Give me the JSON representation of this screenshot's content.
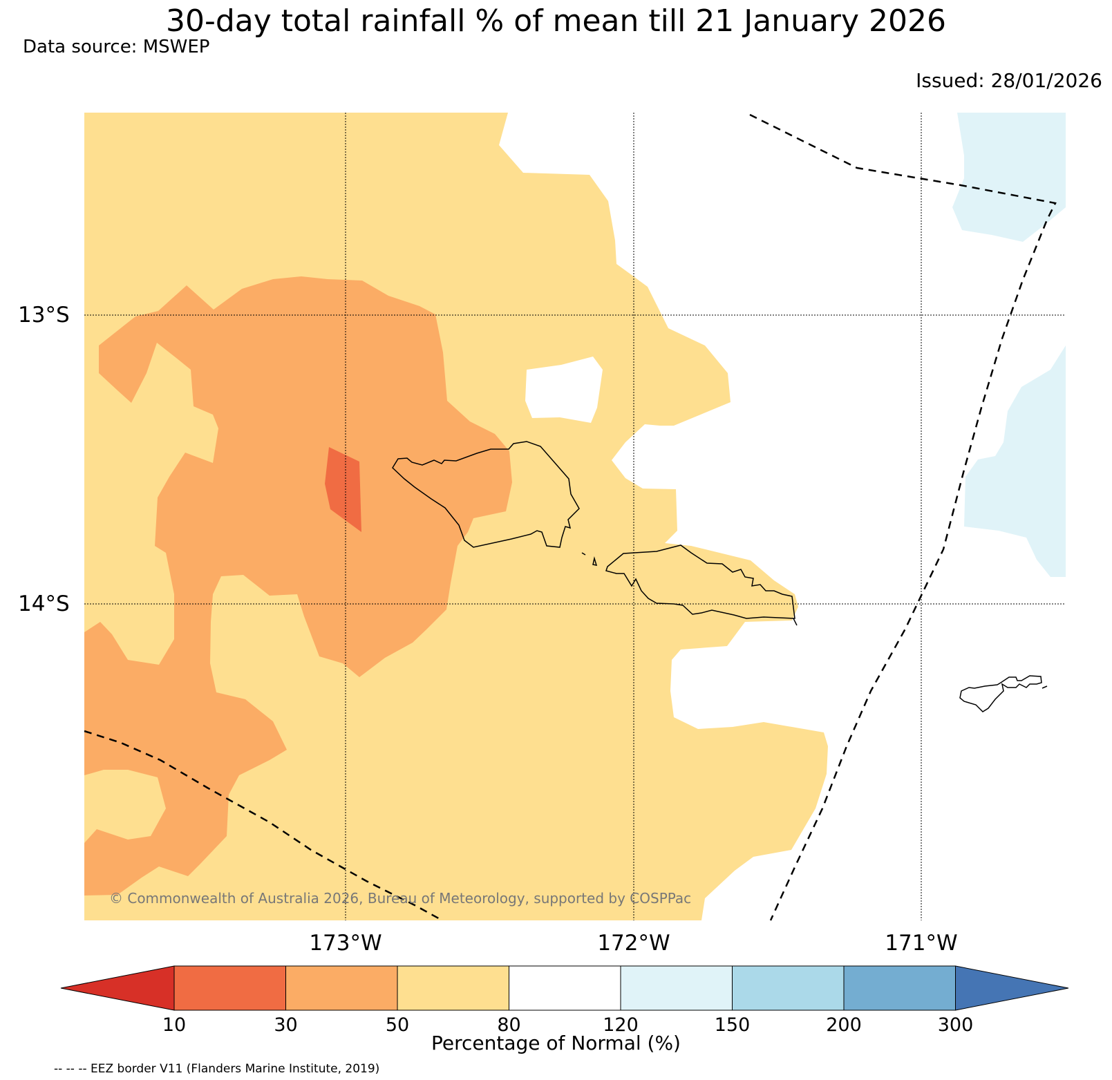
{
  "title": "30-day total rainfall % of mean till 21 January 2026",
  "data_source": "Data source: MSWEP",
  "issued": "Issued: 28/01/2026",
  "copyright": "© Commonwealth of Australia 2026, Bureau of Meteorology, supported by COSPPac",
  "eez_note": "-- -- -- EEZ border V11 (Flanders Marine Institute, 2019)",
  "map": {
    "region": "Samoa",
    "latitude_labels": [
      "13°S",
      "14°S"
    ],
    "longitude_labels": [
      "173°W",
      "172°W",
      "171°W"
    ],
    "colors": {
      "ocean_land_none": "#ffffff",
      "class_10_30": "#f06c43",
      "class_30_50": "#fbac65",
      "class_50_80": "#fedf90",
      "class_120_150": "#e0f3f8",
      "coastline": "#000000",
      "eez": "#000000"
    }
  },
  "legend": {
    "title": "Percentage of Normal (%)",
    "ticks": [
      "10",
      "30",
      "50",
      "80",
      "120",
      "150",
      "200",
      "300"
    ],
    "bins": [
      {
        "range": "<10",
        "color": "#d73027"
      },
      {
        "range": "10-30",
        "color": "#f06c43"
      },
      {
        "range": "30-50",
        "color": "#fbac65"
      },
      {
        "range": "50-80",
        "color": "#fedf90"
      },
      {
        "range": "80-120",
        "color": "#ffffff"
      },
      {
        "range": "120-150",
        "color": "#e0f3f8"
      },
      {
        "range": "150-200",
        "color": "#abd9e9"
      },
      {
        "range": "200-300",
        "color": "#74add1"
      },
      {
        "range": ">300",
        "color": "#4575b4"
      }
    ]
  }
}
